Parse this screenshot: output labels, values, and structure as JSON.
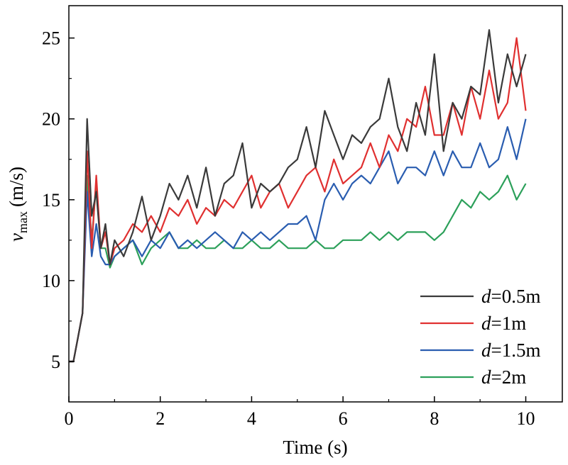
{
  "chart_data": {
    "type": "line",
    "title": "",
    "xlabel": "Time (s)",
    "ylabel": {
      "var": "v",
      "sub": "max",
      "unit": "(m/s)"
    },
    "xlim": [
      0,
      10.8
    ],
    "ylim": [
      2.5,
      27
    ],
    "xticks": [
      0,
      2,
      4,
      6,
      8,
      10
    ],
    "yticks": [
      5,
      10,
      15,
      20,
      25
    ],
    "grid": false,
    "legend_position": "bottom-right",
    "series": [
      {
        "name": "d=0.5m",
        "legend_var": "d",
        "legend_rest": "=0.5m",
        "color": "#3a3a3a",
        "x": [
          0,
          0.1,
          0.2,
          0.3,
          0.4,
          0.5,
          0.6,
          0.7,
          0.8,
          0.9,
          1.0,
          1.2,
          1.4,
          1.6,
          1.8,
          2.0,
          2.2,
          2.4,
          2.6,
          2.8,
          3.0,
          3.2,
          3.4,
          3.6,
          3.8,
          4.0,
          4.2,
          4.4,
          4.6,
          4.8,
          5.0,
          5.2,
          5.4,
          5.6,
          5.8,
          6.0,
          6.2,
          6.4,
          6.6,
          6.8,
          7.0,
          7.2,
          7.4,
          7.6,
          7.8,
          8.0,
          8.2,
          8.4,
          8.6,
          8.8,
          9.0,
          9.2,
          9.4,
          9.6,
          9.8,
          10.0
        ],
        "y": [
          5,
          5,
          6.5,
          8,
          20,
          14,
          15.5,
          12,
          13.5,
          11,
          12.5,
          11.5,
          13,
          15.2,
          12.5,
          14,
          16,
          15,
          16.5,
          14.5,
          17,
          14,
          16,
          16.5,
          18.5,
          14.5,
          16,
          15.5,
          16,
          17,
          17.5,
          19.5,
          17,
          20.5,
          19,
          17.5,
          19,
          18.5,
          19.5,
          20,
          22.5,
          19.5,
          18,
          21,
          19,
          24,
          18,
          21,
          20,
          22,
          21.5,
          25.5,
          21,
          24,
          22,
          24
        ]
      },
      {
        "name": "d=1m",
        "legend_var": "d",
        "legend_rest": "=1m",
        "color": "#e03030",
        "x": [
          0,
          0.1,
          0.2,
          0.3,
          0.4,
          0.5,
          0.6,
          0.7,
          0.8,
          0.9,
          1.0,
          1.2,
          1.4,
          1.6,
          1.8,
          2.0,
          2.2,
          2.4,
          2.6,
          2.8,
          3.0,
          3.2,
          3.4,
          3.6,
          3.8,
          4.0,
          4.2,
          4.4,
          4.6,
          4.8,
          5.0,
          5.2,
          5.4,
          5.6,
          5.8,
          6.0,
          6.2,
          6.4,
          6.6,
          6.8,
          7.0,
          7.2,
          7.4,
          7.6,
          7.8,
          8.0,
          8.2,
          8.4,
          8.6,
          8.8,
          9.0,
          9.2,
          9.4,
          9.6,
          9.8,
          10.0
        ],
        "y": [
          5,
          5,
          6.5,
          8,
          18,
          12,
          16.5,
          12,
          13,
          11,
          12,
          12.5,
          13.5,
          13,
          14,
          13,
          14.5,
          14,
          15,
          13.5,
          14.5,
          14,
          15,
          14.5,
          15.5,
          16.5,
          14.5,
          15.5,
          16,
          14.5,
          15.5,
          16.5,
          17,
          15.5,
          17.5,
          16,
          16.5,
          17,
          18.5,
          17,
          19,
          18,
          20,
          19.5,
          22,
          19,
          19,
          21,
          19,
          22,
          20,
          23,
          20,
          21,
          25,
          20.5
        ]
      },
      {
        "name": "d=1.5m",
        "legend_var": "d",
        "legend_rest": "=1.5m",
        "color": "#2a5db0",
        "x": [
          0,
          0.1,
          0.2,
          0.3,
          0.4,
          0.5,
          0.6,
          0.7,
          0.8,
          0.9,
          1.0,
          1.2,
          1.4,
          1.6,
          1.8,
          2.0,
          2.2,
          2.4,
          2.6,
          2.8,
          3.0,
          3.2,
          3.4,
          3.6,
          3.8,
          4.0,
          4.2,
          4.4,
          4.6,
          4.8,
          5.0,
          5.2,
          5.4,
          5.6,
          5.8,
          6.0,
          6.2,
          6.4,
          6.6,
          6.8,
          7.0,
          7.2,
          7.4,
          7.6,
          7.8,
          8.0,
          8.2,
          8.4,
          8.6,
          8.8,
          9.0,
          9.2,
          9.4,
          9.6,
          9.8,
          10.0
        ],
        "y": [
          5,
          5,
          6.5,
          8,
          15.5,
          11.5,
          13.5,
          11.5,
          11,
          11,
          11.5,
          12,
          12.5,
          11.5,
          12.5,
          12,
          13,
          12,
          12.5,
          12,
          12.5,
          13,
          12.5,
          12,
          13,
          12.5,
          13,
          12.5,
          13,
          13.5,
          13.5,
          14,
          12.5,
          15,
          16,
          15,
          16,
          16.5,
          16,
          17,
          18,
          16,
          17,
          17,
          16.5,
          18,
          16.5,
          18,
          17,
          17,
          18.5,
          17,
          17.5,
          19.5,
          17.5,
          20
        ]
      },
      {
        "name": "d=2m",
        "legend_var": "d",
        "legend_rest": "=2m",
        "color": "#2ca05a",
        "x": [
          0,
          0.1,
          0.2,
          0.3,
          0.4,
          0.5,
          0.6,
          0.7,
          0.8,
          0.9,
          1.0,
          1.2,
          1.4,
          1.6,
          1.8,
          2.0,
          2.2,
          2.4,
          2.6,
          2.8,
          3.0,
          3.2,
          3.4,
          3.6,
          3.8,
          4.0,
          4.2,
          4.4,
          4.6,
          4.8,
          5.0,
          5.2,
          5.4,
          5.6,
          5.8,
          6.0,
          6.2,
          6.4,
          6.6,
          6.8,
          7.0,
          7.2,
          7.4,
          7.6,
          7.8,
          8.0,
          8.2,
          8.4,
          8.6,
          8.8,
          9.0,
          9.2,
          9.4,
          9.6,
          9.8,
          10.0
        ],
        "y": [
          5,
          5,
          6.5,
          8,
          16.5,
          12.5,
          16,
          12,
          12,
          10.8,
          11.5,
          12,
          12.5,
          11,
          12,
          12.5,
          13,
          12,
          12,
          12.5,
          12,
          12,
          12.5,
          12,
          12,
          12.5,
          12,
          12,
          12.5,
          12,
          12,
          12,
          12.5,
          12,
          12,
          12.5,
          12.5,
          12.5,
          13,
          12.5,
          13,
          12.5,
          13,
          13,
          13,
          12.5,
          13,
          14,
          15,
          14.5,
          15.5,
          15,
          15.5,
          16.5,
          15,
          16
        ]
      }
    ]
  }
}
